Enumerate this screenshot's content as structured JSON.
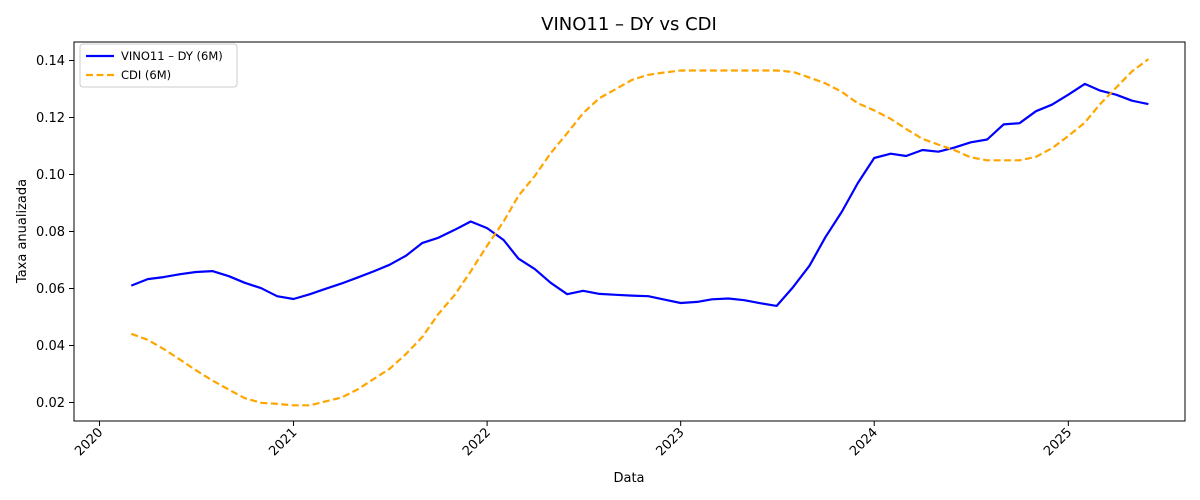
{
  "chart_data": {
    "type": "line",
    "title": "VINO11 – DY vs CDI",
    "xlabel": "Data",
    "ylabel": "Taxa anualizada",
    "xlim": [
      "2019-11-14",
      "2025-08-09"
    ],
    "ylim": [
      0.0135,
      0.1465
    ],
    "x_ticks": [
      "2020",
      "2021",
      "2022",
      "2023",
      "2024",
      "2025"
    ],
    "y_ticks": [
      "0.02",
      "0.04",
      "0.06",
      "0.08",
      "0.10",
      "0.12",
      "0.14"
    ],
    "grid": false,
    "legend_position": "top-left",
    "series": [
      {
        "name": "VINO11 – DY (6M)",
        "color": "#0000ff",
        "style": "solid",
        "points": [
          [
            "2020-03-01",
            0.061
          ],
          [
            "2020-04-01",
            0.0633
          ],
          [
            "2020-05-01",
            0.064
          ],
          [
            "2020-06-01",
            0.065
          ],
          [
            "2020-07-01",
            0.0658
          ],
          [
            "2020-08-01",
            0.0661
          ],
          [
            "2020-09-01",
            0.0643
          ],
          [
            "2020-10-01",
            0.062
          ],
          [
            "2020-11-01",
            0.0601
          ],
          [
            "2020-12-01",
            0.0573
          ],
          [
            "2021-01-01",
            0.0563
          ],
          [
            "2021-02-01",
            0.058
          ],
          [
            "2021-03-01",
            0.0598
          ],
          [
            "2021-04-01",
            0.0617
          ],
          [
            "2021-05-01",
            0.0638
          ],
          [
            "2021-06-01",
            0.066
          ],
          [
            "2021-07-01",
            0.0683
          ],
          [
            "2021-08-01",
            0.0715
          ],
          [
            "2021-09-01",
            0.076
          ],
          [
            "2021-10-01",
            0.0778
          ],
          [
            "2021-11-01",
            0.0806
          ],
          [
            "2021-12-01",
            0.0835
          ],
          [
            "2022-01-01",
            0.0812
          ],
          [
            "2022-02-01",
            0.077
          ],
          [
            "2022-03-01",
            0.0705
          ],
          [
            "2022-04-01",
            0.0668
          ],
          [
            "2022-05-01",
            0.062
          ],
          [
            "2022-06-01",
            0.058
          ],
          [
            "2022-07-01",
            0.0592
          ],
          [
            "2022-08-01",
            0.0581
          ],
          [
            "2022-09-01",
            0.0578
          ],
          [
            "2022-10-01",
            0.0575
          ],
          [
            "2022-11-01",
            0.0573
          ],
          [
            "2022-12-01",
            0.0561
          ],
          [
            "2023-01-01",
            0.0549
          ],
          [
            "2023-02-01",
            0.0553
          ],
          [
            "2023-03-01",
            0.0562
          ],
          [
            "2023-04-01",
            0.0565
          ],
          [
            "2023-05-01",
            0.0559
          ],
          [
            "2023-06-01",
            0.0548
          ],
          [
            "2023-07-01",
            0.0539
          ],
          [
            "2023-08-01",
            0.0605
          ],
          [
            "2023-09-01",
            0.068
          ],
          [
            "2023-10-01",
            0.078
          ],
          [
            "2023-11-01",
            0.087
          ],
          [
            "2023-12-01",
            0.097
          ],
          [
            "2024-01-01",
            0.1058
          ],
          [
            "2024-02-01",
            0.1073
          ],
          [
            "2024-03-01",
            0.1065
          ],
          [
            "2024-04-01",
            0.1086
          ],
          [
            "2024-05-01",
            0.108
          ],
          [
            "2024-06-01",
            0.1095
          ],
          [
            "2024-07-01",
            0.1113
          ],
          [
            "2024-08-01",
            0.1123
          ],
          [
            "2024-09-01",
            0.1176
          ],
          [
            "2024-10-01",
            0.118
          ],
          [
            "2024-11-01",
            0.1222
          ],
          [
            "2024-12-01",
            0.1245
          ],
          [
            "2025-01-01",
            0.128
          ],
          [
            "2025-02-01",
            0.1318
          ],
          [
            "2025-03-01",
            0.1295
          ],
          [
            "2025-04-01",
            0.128
          ],
          [
            "2025-05-01",
            0.1259
          ],
          [
            "2025-06-01",
            0.1247
          ]
        ]
      },
      {
        "name": "CDI (6M)",
        "color": "#ffa500",
        "style": "dashed",
        "points": [
          [
            "2020-03-01",
            0.0441
          ],
          [
            "2020-04-01",
            0.042
          ],
          [
            "2020-05-01",
            0.0388
          ],
          [
            "2020-06-01",
            0.035
          ],
          [
            "2020-07-01",
            0.0313
          ],
          [
            "2020-08-01",
            0.0277
          ],
          [
            "2020-09-01",
            0.0245
          ],
          [
            "2020-10-01",
            0.0215
          ],
          [
            "2020-11-01",
            0.0199
          ],
          [
            "2020-12-01",
            0.0195
          ],
          [
            "2021-01-01",
            0.019
          ],
          [
            "2021-02-01",
            0.019
          ],
          [
            "2021-03-01",
            0.0203
          ],
          [
            "2021-04-01",
            0.0217
          ],
          [
            "2021-05-01",
            0.0245
          ],
          [
            "2021-06-01",
            0.0282
          ],
          [
            "2021-07-01",
            0.0318
          ],
          [
            "2021-08-01",
            0.037
          ],
          [
            "2021-09-01",
            0.043
          ],
          [
            "2021-10-01",
            0.051
          ],
          [
            "2021-11-01",
            0.0578
          ],
          [
            "2021-12-01",
            0.066
          ],
          [
            "2022-01-01",
            0.075
          ],
          [
            "2022-02-01",
            0.0835
          ],
          [
            "2022-03-01",
            0.0925
          ],
          [
            "2022-04-01",
            0.0995
          ],
          [
            "2022-05-01",
            0.1075
          ],
          [
            "2022-06-01",
            0.1145
          ],
          [
            "2022-07-01",
            0.1215
          ],
          [
            "2022-08-01",
            0.1268
          ],
          [
            "2022-09-01",
            0.13
          ],
          [
            "2022-10-01",
            0.1332
          ],
          [
            "2022-11-01",
            0.135
          ],
          [
            "2022-12-01",
            0.1358
          ],
          [
            "2023-01-01",
            0.1365
          ],
          [
            "2023-02-01",
            0.1365
          ],
          [
            "2023-03-01",
            0.1365
          ],
          [
            "2023-04-01",
            0.1365
          ],
          [
            "2023-05-01",
            0.1365
          ],
          [
            "2023-06-01",
            0.1365
          ],
          [
            "2023-07-01",
            0.1365
          ],
          [
            "2023-08-01",
            0.136
          ],
          [
            "2023-09-01",
            0.134
          ],
          [
            "2023-10-01",
            0.132
          ],
          [
            "2023-11-01",
            0.129
          ],
          [
            "2023-12-01",
            0.125
          ],
          [
            "2024-01-01",
            0.1225
          ],
          [
            "2024-02-01",
            0.1195
          ],
          [
            "2024-03-01",
            0.116
          ],
          [
            "2024-04-01",
            0.1125
          ],
          [
            "2024-05-01",
            0.1105
          ],
          [
            "2024-06-01",
            0.1085
          ],
          [
            "2024-07-01",
            0.106
          ],
          [
            "2024-08-01",
            0.105
          ],
          [
            "2024-09-01",
            0.105
          ],
          [
            "2024-10-01",
            0.105
          ],
          [
            "2024-11-01",
            0.1062
          ],
          [
            "2024-12-01",
            0.1092
          ],
          [
            "2025-01-01",
            0.1135
          ],
          [
            "2025-02-01",
            0.1182
          ],
          [
            "2025-03-01",
            0.1245
          ],
          [
            "2025-04-01",
            0.1305
          ],
          [
            "2025-05-01",
            0.1362
          ],
          [
            "2025-06-01",
            0.1405
          ]
        ]
      }
    ]
  }
}
